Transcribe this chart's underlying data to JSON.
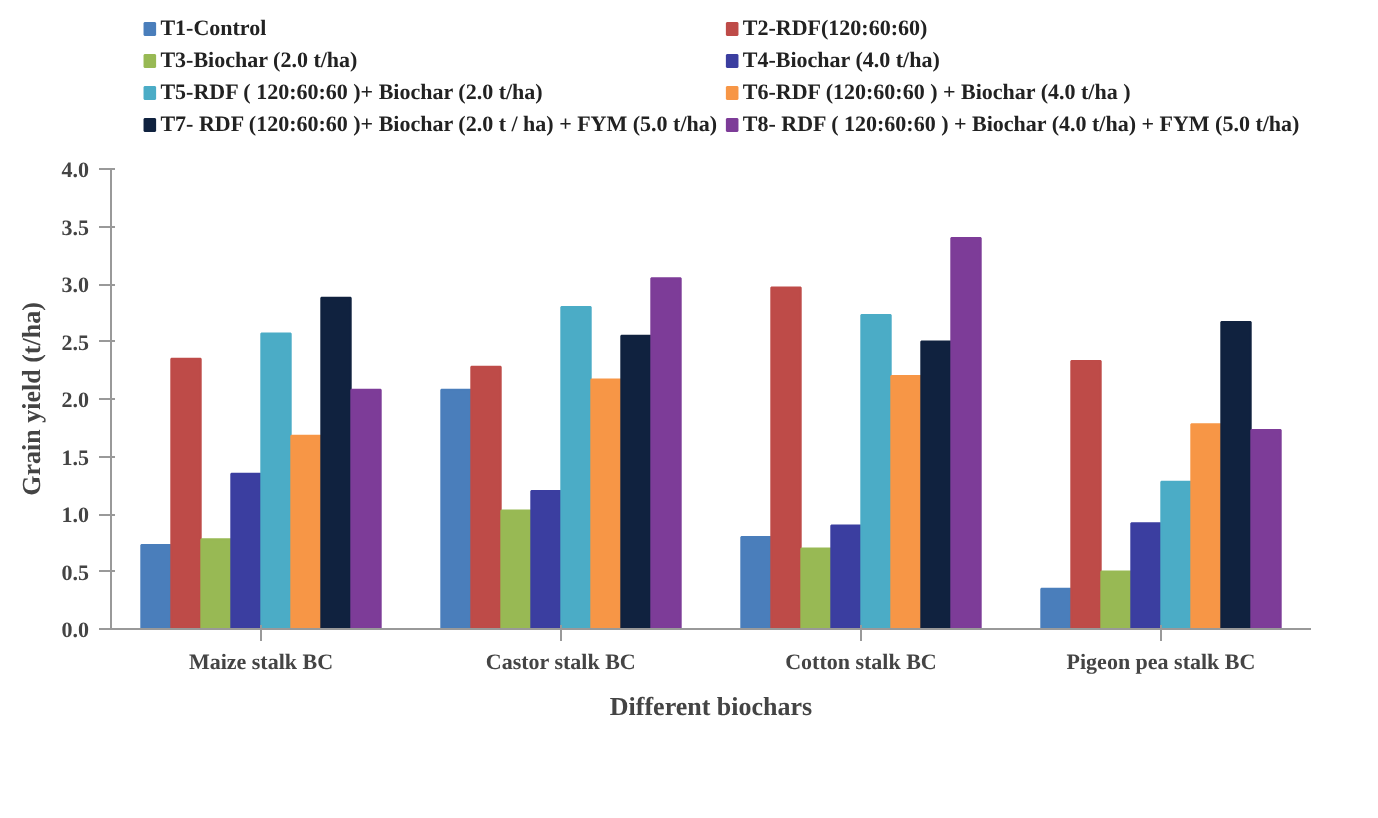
{
  "chart_data": {
    "type": "bar",
    "xlabel": "Different biochars",
    "ylabel": "Grain yield (t/ha)",
    "categories": [
      "Maize stalk BC",
      "Castor stalk BC",
      "Cotton stalk BC",
      "Pigeon pea stalk BC"
    ],
    "series": [
      {
        "name": "T1-Control",
        "color": "#4a7ebb",
        "values": [
          0.73,
          2.08,
          0.8,
          0.35
        ]
      },
      {
        "name": "T2-RDF(120:60:60)",
        "color": "#be4b48",
        "values": [
          2.35,
          2.28,
          2.97,
          2.33
        ]
      },
      {
        "name": "T3-Biochar (2.0 t/ha)",
        "color": "#98b954",
        "values": [
          0.78,
          1.03,
          0.7,
          0.5
        ]
      },
      {
        "name": "T4-Biochar (4.0 t/ha)",
        "color": "#3b3ea0",
        "values": [
          1.35,
          1.2,
          0.9,
          0.92
        ]
      },
      {
        "name": "T5-RDF ( 120:60:60 )+ Biochar (2.0 t/ha)",
        "color": "#4bacc6",
        "values": [
          2.57,
          2.8,
          2.73,
          1.28
        ]
      },
      {
        "name": "T6-RDF (120:60:60 ) + Biochar (4.0 t/ha )",
        "color": "#f79646",
        "values": [
          1.68,
          2.17,
          2.2,
          1.78
        ]
      },
      {
        "name": "T7- RDF (120:60:60 )+ Biochar (2.0 t / ha) + FYM (5.0 t/ha)",
        "color": "#10223f",
        "values": [
          2.88,
          2.55,
          2.5,
          2.67
        ]
      },
      {
        "name": "T8- RDF ( 120:60:60 ) + Biochar (4.0 t/ha) + FYM (5.0 t/ha)",
        "color": "#7d3c98",
        "values": [
          2.08,
          3.05,
          3.4,
          1.73
        ]
      }
    ],
    "ylim": [
      0,
      4.0
    ],
    "yticks": [
      {
        "value": 0,
        "label": "0.0"
      },
      {
        "value": 0.5,
        "label": "0.5"
      },
      {
        "value": 1,
        "label": "1.0"
      },
      {
        "value": 1.5,
        "label": "1.5"
      },
      {
        "value": 2,
        "label": "2.0"
      },
      {
        "value": 2.5,
        "label": "2.5"
      },
      {
        "value": 3,
        "label": "3.0"
      },
      {
        "value": 3.5,
        "label": "3.5"
      },
      {
        "value": 4,
        "label": "4.0"
      }
    ],
    "grid": false,
    "legend": "top"
  }
}
